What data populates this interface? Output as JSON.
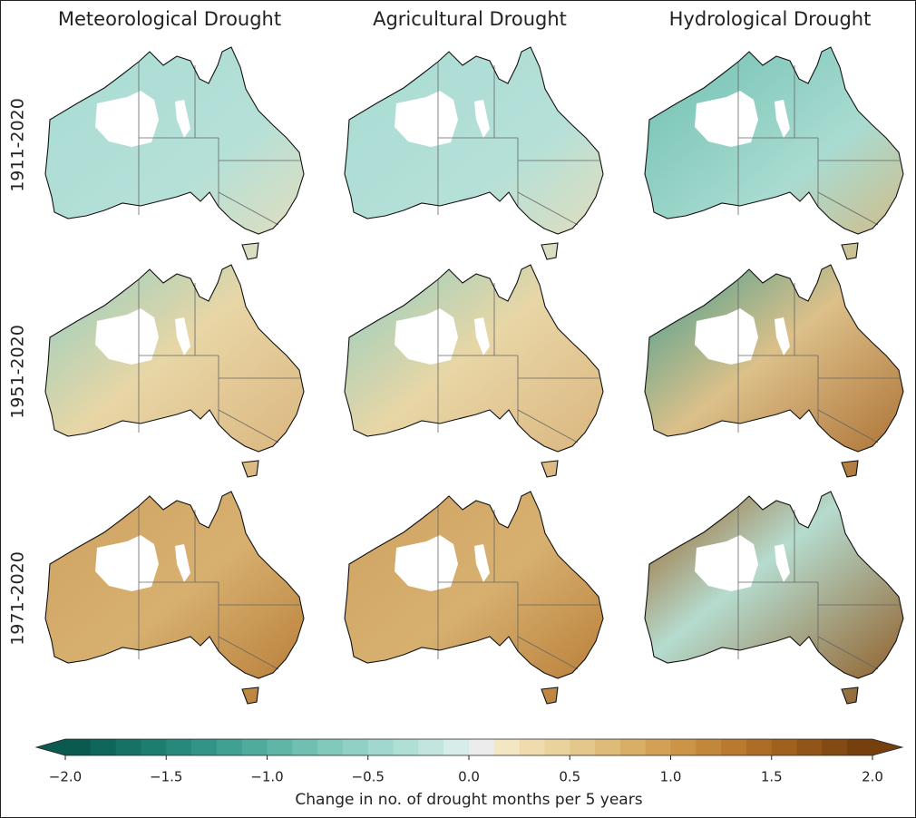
{
  "chart_data": {
    "type": "choropleth-grid",
    "column_titles": [
      "Meteorological Drought",
      "Agricultural Drought",
      "Hydrological Drought"
    ],
    "row_labels": [
      "1911-2020",
      "1951-2020",
      "1971-2020"
    ],
    "colorbar": {
      "label": "Change in no. of drought months per 5 years",
      "lim": [
        -2,
        2
      ],
      "ticks": [
        {
          "value": -2,
          "label": "−2.0"
        },
        {
          "value": -1.5,
          "label": "−1.5"
        },
        {
          "value": -1,
          "label": "−1.0"
        },
        {
          "value": -0.5,
          "label": "−0.5"
        },
        {
          "value": 0,
          "label": "0.0"
        },
        {
          "value": 0.5,
          "label": "0.5"
        },
        {
          "value": 1,
          "label": "1.0"
        },
        {
          "value": 1.5,
          "label": "1.5"
        },
        {
          "value": 2,
          "label": "2.0"
        }
      ],
      "colors": [
        "#0b5a50",
        "#0f665b",
        "#157265",
        "#1d7e70",
        "#26897b",
        "#329486",
        "#40a091",
        "#4fab9c",
        "#5fb6a7",
        "#70c0b1",
        "#80c9bb",
        "#90d1c4",
        "#a0d8cd",
        "#b0dfd6",
        "#c2e6df",
        "#d6ede9",
        "#ececec",
        "#f3e6c2",
        "#eedcae",
        "#e9d29c",
        "#e4c78a",
        "#dfbb78",
        "#d9ae66",
        "#d3a156",
        "#cc9447",
        "#c3873a",
        "#b97a30",
        "#ad6d27",
        "#a0611f",
        "#925518",
        "#844a13",
        "#763f0e"
      ],
      "extend": "both"
    }
  }
}
